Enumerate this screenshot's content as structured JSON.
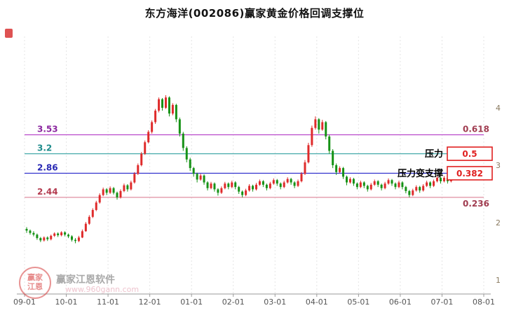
{
  "watermark": {
    "brand": "赢家江恩软件",
    "url": "www.960gann.com",
    "logo_line1": "赢家",
    "logo_line2": "江恩"
  },
  "chart_data": {
    "type": "candlestick",
    "title": "东方海洋(002086)赢家黄金价格回调支撑位",
    "stock_name": "东方海洋",
    "symbol": "002086",
    "x_labels": [
      "09-01",
      "10-01",
      "11-01",
      "12-01",
      "01-01",
      "02-01",
      "03-01",
      "04-01",
      "05-01",
      "06-01",
      "07-01",
      "08-01"
    ],
    "y_ticks": [
      "4",
      "3",
      "2",
      "1"
    ],
    "ylim": [
      1,
      4.5
    ],
    "up_color": "#df2b2b",
    "down_color": "#169216",
    "support_levels": [
      {
        "price": 3.53,
        "price_label": "3.53",
        "ratio_label": "0.618",
        "line_color": "#b43cc8",
        "label_color": "#8c28a0",
        "ratio_color": "#a03c50",
        "ratio_side": "above",
        "boxed": false
      },
      {
        "price": 3.2,
        "price_label": "3.2",
        "ratio_label": "0.5",
        "line_color": "#46aaaa",
        "label_color": "#1e8c8c",
        "boxed": true,
        "annotation": "压力"
      },
      {
        "price": 2.86,
        "price_label": "2.86",
        "ratio_label": "0.382",
        "line_color": "#3232cd",
        "label_color": "#2828b4",
        "boxed": true,
        "annotation": "压力变支撑"
      },
      {
        "price": 2.44,
        "price_label": "2.44",
        "ratio_label": "0.236",
        "line_color": "#dc8296",
        "label_color": "#b43c50",
        "ratio_color": "#a03c50",
        "ratio_side": "below",
        "boxed": false
      }
    ],
    "box_color": "#e02020",
    "annotation_color": "#000000",
    "candles": [
      [
        1.89,
        1.92,
        1.82,
        1.86
      ],
      [
        1.86,
        1.88,
        1.79,
        1.82
      ],
      [
        1.82,
        1.85,
        1.76,
        1.79
      ],
      [
        1.79,
        1.81,
        1.7,
        1.73
      ],
      [
        1.73,
        1.75,
        1.66,
        1.69
      ],
      [
        1.69,
        1.76,
        1.67,
        1.74
      ],
      [
        1.74,
        1.76,
        1.68,
        1.71
      ],
      [
        1.71,
        1.79,
        1.69,
        1.77
      ],
      [
        1.77,
        1.83,
        1.75,
        1.81
      ],
      [
        1.81,
        1.83,
        1.75,
        1.78
      ],
      [
        1.78,
        1.85,
        1.76,
        1.83
      ],
      [
        1.83,
        1.85,
        1.76,
        1.79
      ],
      [
        1.79,
        1.81,
        1.73,
        1.76
      ],
      [
        1.76,
        1.78,
        1.67,
        1.7
      ],
      [
        1.7,
        1.73,
        1.64,
        1.68
      ],
      [
        1.68,
        1.77,
        1.66,
        1.74
      ],
      [
        1.74,
        1.88,
        1.73,
        1.85
      ],
      [
        1.85,
        2.01,
        1.84,
        1.98
      ],
      [
        1.98,
        2.13,
        1.96,
        2.1
      ],
      [
        2.1,
        2.25,
        2.08,
        2.22
      ],
      [
        2.22,
        2.38,
        2.2,
        2.35
      ],
      [
        2.35,
        2.51,
        2.33,
        2.48
      ],
      [
        2.48,
        2.61,
        2.46,
        2.58
      ],
      [
        2.58,
        2.6,
        2.48,
        2.52
      ],
      [
        2.52,
        2.63,
        2.5,
        2.6
      ],
      [
        2.6,
        2.62,
        2.49,
        2.52
      ],
      [
        2.52,
        2.54,
        2.4,
        2.44
      ],
      [
        2.44,
        2.58,
        2.42,
        2.55
      ],
      [
        2.55,
        2.68,
        2.53,
        2.65
      ],
      [
        2.65,
        2.67,
        2.54,
        2.58
      ],
      [
        2.58,
        2.73,
        2.56,
        2.7
      ],
      [
        2.7,
        2.88,
        2.68,
        2.85
      ],
      [
        2.85,
        3.03,
        2.83,
        3.0
      ],
      [
        3.0,
        3.23,
        2.98,
        3.2
      ],
      [
        3.2,
        3.43,
        3.18,
        3.4
      ],
      [
        3.4,
        3.61,
        3.38,
        3.58
      ],
      [
        3.58,
        3.78,
        3.55,
        3.75
      ],
      [
        3.75,
        3.98,
        3.72,
        3.95
      ],
      [
        3.95,
        4.18,
        3.92,
        4.15
      ],
      [
        4.15,
        4.17,
        3.95,
        4.0
      ],
      [
        4.0,
        4.22,
        3.98,
        4.18
      ],
      [
        4.18,
        4.2,
        3.85,
        3.9
      ],
      [
        3.9,
        4.08,
        3.87,
        4.05
      ],
      [
        4.05,
        4.07,
        3.75,
        3.8
      ],
      [
        3.8,
        3.83,
        3.5,
        3.55
      ],
      [
        3.55,
        3.58,
        3.25,
        3.3
      ],
      [
        3.3,
        3.33,
        3.05,
        3.1
      ],
      [
        3.1,
        3.13,
        2.9,
        2.95
      ],
      [
        2.95,
        2.97,
        2.8,
        2.85
      ],
      [
        2.85,
        2.87,
        2.7,
        2.75
      ],
      [
        2.75,
        2.85,
        2.73,
        2.82
      ],
      [
        2.82,
        2.84,
        2.66,
        2.7
      ],
      [
        2.7,
        2.72,
        2.56,
        2.6
      ],
      [
        2.6,
        2.71,
        2.58,
        2.68
      ],
      [
        2.68,
        2.7,
        2.54,
        2.58
      ],
      [
        2.58,
        2.6,
        2.47,
        2.52
      ],
      [
        2.52,
        2.63,
        2.5,
        2.6
      ],
      [
        2.6,
        2.71,
        2.58,
        2.68
      ],
      [
        2.68,
        2.7,
        2.58,
        2.62
      ],
      [
        2.62,
        2.73,
        2.6,
        2.7
      ],
      [
        2.7,
        2.72,
        2.58,
        2.62
      ],
      [
        2.62,
        2.64,
        2.5,
        2.54
      ],
      [
        2.54,
        2.56,
        2.44,
        2.48
      ],
      [
        2.48,
        2.59,
        2.46,
        2.56
      ],
      [
        2.56,
        2.67,
        2.54,
        2.64
      ],
      [
        2.64,
        2.66,
        2.54,
        2.58
      ],
      [
        2.58,
        2.69,
        2.56,
        2.66
      ],
      [
        2.66,
        2.75,
        2.64,
        2.72
      ],
      [
        2.72,
        2.74,
        2.62,
        2.66
      ],
      [
        2.66,
        2.68,
        2.56,
        2.6
      ],
      [
        2.6,
        2.71,
        2.58,
        2.68
      ],
      [
        2.68,
        2.77,
        2.66,
        2.74
      ],
      [
        2.74,
        2.76,
        2.64,
        2.68
      ],
      [
        2.68,
        2.7,
        2.58,
        2.62
      ],
      [
        2.62,
        2.73,
        2.6,
        2.7
      ],
      [
        2.7,
        2.79,
        2.68,
        2.76
      ],
      [
        2.76,
        2.78,
        2.66,
        2.7
      ],
      [
        2.7,
        2.72,
        2.6,
        2.64
      ],
      [
        2.64,
        2.75,
        2.62,
        2.72
      ],
      [
        2.72,
        2.88,
        2.7,
        2.85
      ],
      [
        2.85,
        3.09,
        2.83,
        3.05
      ],
      [
        3.05,
        3.39,
        3.03,
        3.35
      ],
      [
        3.35,
        3.69,
        3.32,
        3.65
      ],
      [
        3.65,
        3.85,
        3.62,
        3.8
      ],
      [
        3.8,
        3.82,
        3.55,
        3.62
      ],
      [
        3.62,
        3.79,
        3.6,
        3.75
      ],
      [
        3.75,
        3.77,
        3.45,
        3.5
      ],
      [
        3.5,
        3.53,
        3.2,
        3.25
      ],
      [
        3.25,
        3.28,
        2.95,
        3.0
      ],
      [
        3.0,
        3.03,
        2.83,
        2.88
      ],
      [
        2.88,
        2.98,
        2.86,
        2.95
      ],
      [
        2.95,
        2.97,
        2.76,
        2.8
      ],
      [
        2.8,
        2.82,
        2.65,
        2.7
      ],
      [
        2.7,
        2.79,
        2.68,
        2.76
      ],
      [
        2.76,
        2.78,
        2.64,
        2.68
      ],
      [
        2.68,
        2.7,
        2.58,
        2.62
      ],
      [
        2.62,
        2.73,
        2.6,
        2.7
      ],
      [
        2.7,
        2.72,
        2.6,
        2.64
      ],
      [
        2.64,
        2.66,
        2.54,
        2.58
      ],
      [
        2.58,
        2.69,
        2.56,
        2.66
      ],
      [
        2.66,
        2.75,
        2.64,
        2.72
      ],
      [
        2.72,
        2.74,
        2.62,
        2.66
      ],
      [
        2.66,
        2.68,
        2.56,
        2.6
      ],
      [
        2.6,
        2.71,
        2.58,
        2.68
      ],
      [
        2.68,
        2.77,
        2.66,
        2.74
      ],
      [
        2.74,
        2.76,
        2.64,
        2.68
      ],
      [
        2.68,
        2.7,
        2.58,
        2.62
      ],
      [
        2.62,
        2.73,
        2.6,
        2.7
      ],
      [
        2.7,
        2.72,
        2.58,
        2.62
      ],
      [
        2.62,
        2.64,
        2.51,
        2.55
      ],
      [
        2.55,
        2.57,
        2.44,
        2.48
      ],
      [
        2.48,
        2.59,
        2.46,
        2.56
      ],
      [
        2.56,
        2.65,
        2.54,
        2.62
      ],
      [
        2.62,
        2.64,
        2.52,
        2.56
      ],
      [
        2.56,
        2.67,
        2.54,
        2.64
      ],
      [
        2.64,
        2.73,
        2.62,
        2.7
      ],
      [
        2.7,
        2.72,
        2.6,
        2.64
      ],
      [
        2.64,
        2.75,
        2.62,
        2.72
      ],
      [
        2.72,
        2.81,
        2.7,
        2.78
      ],
      [
        2.78,
        2.8,
        2.68,
        2.72
      ],
      [
        2.72,
        2.81,
        2.7,
        2.78
      ],
      [
        2.78,
        2.8,
        2.68,
        2.72
      ],
      [
        2.72,
        2.83,
        2.7,
        2.8
      ]
    ]
  }
}
